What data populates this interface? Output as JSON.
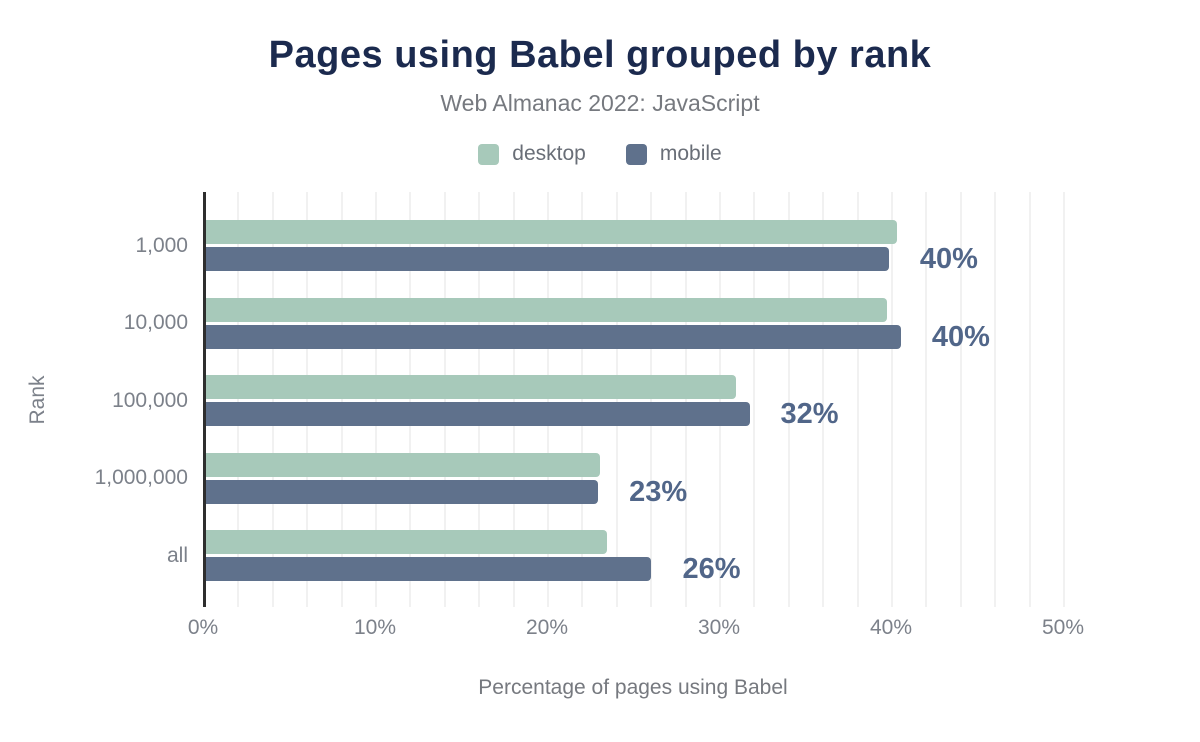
{
  "header": {
    "title": "Pages using Babel grouped by rank",
    "subtitle": "Web Almanac 2022: JavaScript"
  },
  "legend": {
    "items": [
      {
        "label": "desktop",
        "color": "#a7c9ba"
      },
      {
        "label": "mobile",
        "color": "#5f718c"
      }
    ]
  },
  "chart_data": {
    "type": "bar",
    "orientation": "horizontal",
    "title": "Pages using Babel grouped by rank",
    "subtitle": "Web Almanac 2022: JavaScript",
    "categories": [
      "1,000",
      "10,000",
      "100,000",
      "1,000,000",
      "all"
    ],
    "series": [
      {
        "name": "desktop",
        "color": "#a7c9ba",
        "values": [
          40.2,
          39.6,
          30.8,
          22.9,
          23.3
        ]
      },
      {
        "name": "mobile",
        "color": "#5f718c",
        "values": [
          39.7,
          40.4,
          31.6,
          22.8,
          25.9
        ]
      }
    ],
    "data_labels": [
      "40%",
      "40%",
      "32%",
      "23%",
      "26%"
    ],
    "data_label_color": "#516689",
    "xlabel": "Percentage of pages using Babel",
    "ylabel": "Rank",
    "x_ticks": [
      {
        "label": "0%",
        "value": 0
      },
      {
        "label": "10%",
        "value": 10
      },
      {
        "label": "20%",
        "value": 20
      },
      {
        "label": "30%",
        "value": 30
      },
      {
        "label": "40%",
        "value": 40
      },
      {
        "label": "50%",
        "value": 50
      }
    ],
    "xlim": [
      0,
      50
    ],
    "grid": {
      "step": 2,
      "color": "#f1f1f1",
      "on": true
    },
    "axis_color": "#2e2e2e",
    "legend_position": "top"
  }
}
